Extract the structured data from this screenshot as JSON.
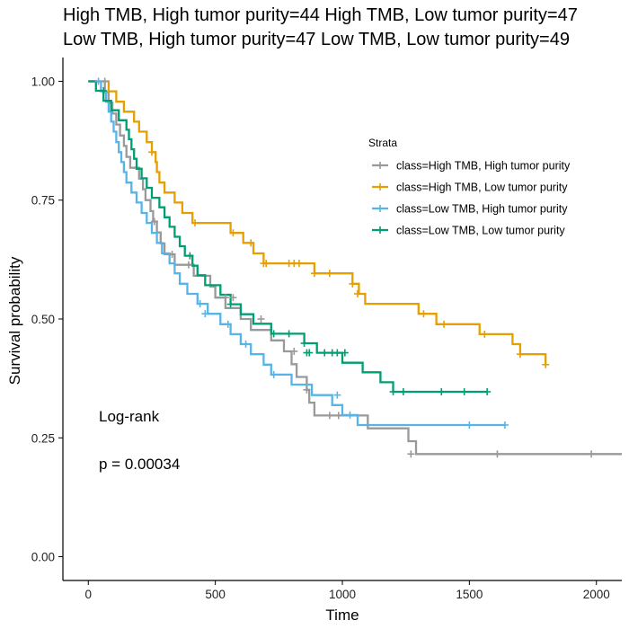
{
  "chart_data": {
    "type": "line",
    "title_lines": [
      "High TMB, High tumor purity=44 High TMB, Low tumor purity=47",
      "Low TMB, High tumor purity=47 Low TMB, Low tumor purity=49"
    ],
    "xlabel": "Time",
    "ylabel": "Survival probability",
    "xlim": [
      -100,
      2100
    ],
    "ylim": [
      -0.05,
      1.05
    ],
    "xticks": [
      0,
      500,
      1000,
      1500,
      2000
    ],
    "yticks": [
      0.0,
      0.25,
      0.5,
      0.75,
      1.0
    ],
    "ytick_labels": [
      "0.00",
      "0.25",
      "0.50",
      "0.75",
      "1.00"
    ],
    "grid": false,
    "legend": {
      "title": "Strata",
      "position": "top-right"
    },
    "annotations": [
      "Log-rank",
      "p = 0.00034"
    ],
    "series": [
      {
        "name": "class=High TMB, High tumor purity",
        "color": "#999999",
        "steps": [
          [
            0,
            1.0
          ],
          [
            65,
            0.977
          ],
          [
            80,
            0.955
          ],
          [
            95,
            0.932
          ],
          [
            110,
            0.909
          ],
          [
            125,
            0.886
          ],
          [
            140,
            0.864
          ],
          [
            150,
            0.841
          ],
          [
            165,
            0.818
          ],
          [
            200,
            0.795
          ],
          [
            215,
            0.773
          ],
          [
            225,
            0.75
          ],
          [
            245,
            0.727
          ],
          [
            255,
            0.705
          ],
          [
            270,
            0.682
          ],
          [
            285,
            0.659
          ],
          [
            300,
            0.636
          ],
          [
            340,
            0.614
          ],
          [
            415,
            0.591
          ],
          [
            480,
            0.568
          ],
          [
            500,
            0.545
          ],
          [
            540,
            0.523
          ],
          [
            600,
            0.5
          ],
          [
            640,
            0.477
          ],
          [
            720,
            0.455
          ],
          [
            770,
            0.432
          ],
          [
            800,
            0.405
          ],
          [
            820,
            0.378
          ],
          [
            860,
            0.351
          ],
          [
            870,
            0.324
          ],
          [
            890,
            0.297
          ],
          [
            1100,
            0.27
          ],
          [
            1260,
            0.243
          ],
          [
            1290,
            0.216
          ]
        ],
        "end": 2100,
        "censors": [
          [
            65,
            1.0
          ],
          [
            260,
            0.705
          ],
          [
            330,
            0.636
          ],
          [
            395,
            0.614
          ],
          [
            540,
            0.545
          ],
          [
            570,
            0.545
          ],
          [
            680,
            0.5
          ],
          [
            810,
            0.432
          ],
          [
            860,
            0.351
          ],
          [
            950,
            0.297
          ],
          [
            985,
            0.297
          ],
          [
            1270,
            0.216
          ],
          [
            1610,
            0.216
          ],
          [
            1980,
            0.216
          ]
        ]
      },
      {
        "name": "class=High TMB, Low tumor purity",
        "color": "#E69F00",
        "steps": [
          [
            0,
            1.0
          ],
          [
            80,
            0.979
          ],
          [
            110,
            0.957
          ],
          [
            140,
            0.936
          ],
          [
            180,
            0.915
          ],
          [
            200,
            0.894
          ],
          [
            230,
            0.872
          ],
          [
            250,
            0.851
          ],
          [
            265,
            0.83
          ],
          [
            270,
            0.809
          ],
          [
            280,
            0.787
          ],
          [
            300,
            0.766
          ],
          [
            340,
            0.745
          ],
          [
            370,
            0.723
          ],
          [
            410,
            0.702
          ],
          [
            560,
            0.681
          ],
          [
            610,
            0.66
          ],
          [
            650,
            0.638
          ],
          [
            690,
            0.617
          ],
          [
            890,
            0.596
          ],
          [
            1040,
            0.574
          ],
          [
            1065,
            0.553
          ],
          [
            1090,
            0.532
          ],
          [
            1300,
            0.511
          ],
          [
            1370,
            0.489
          ],
          [
            1540,
            0.468
          ],
          [
            1670,
            0.447
          ],
          [
            1700,
            0.426
          ],
          [
            1800,
            0.404
          ]
        ],
        "end": 1800,
        "censors": [
          [
            250,
            0.851
          ],
          [
            420,
            0.702
          ],
          [
            570,
            0.681
          ],
          [
            640,
            0.66
          ],
          [
            690,
            0.617
          ],
          [
            700,
            0.617
          ],
          [
            790,
            0.617
          ],
          [
            810,
            0.617
          ],
          [
            830,
            0.617
          ],
          [
            890,
            0.596
          ],
          [
            950,
            0.596
          ],
          [
            1040,
            0.574
          ],
          [
            1060,
            0.553
          ],
          [
            1320,
            0.511
          ],
          [
            1400,
            0.489
          ],
          [
            1560,
            0.468
          ],
          [
            1700,
            0.426
          ],
          [
            1800,
            0.404
          ]
        ]
      },
      {
        "name": "class=Low TMB, High tumor purity",
        "color": "#56B4E9",
        "steps": [
          [
            0,
            1.0
          ],
          [
            50,
            0.979
          ],
          [
            70,
            0.957
          ],
          [
            80,
            0.936
          ],
          [
            90,
            0.915
          ],
          [
            100,
            0.894
          ],
          [
            110,
            0.872
          ],
          [
            120,
            0.851
          ],
          [
            130,
            0.83
          ],
          [
            140,
            0.809
          ],
          [
            150,
            0.787
          ],
          [
            170,
            0.766
          ],
          [
            190,
            0.745
          ],
          [
            210,
            0.723
          ],
          [
            230,
            0.702
          ],
          [
            250,
            0.681
          ],
          [
            270,
            0.66
          ],
          [
            290,
            0.638
          ],
          [
            320,
            0.617
          ],
          [
            340,
            0.596
          ],
          [
            360,
            0.574
          ],
          [
            390,
            0.553
          ],
          [
            430,
            0.532
          ],
          [
            470,
            0.511
          ],
          [
            520,
            0.489
          ],
          [
            560,
            0.468
          ],
          [
            600,
            0.447
          ],
          [
            640,
            0.426
          ],
          [
            690,
            0.404
          ],
          [
            720,
            0.383
          ],
          [
            800,
            0.362
          ],
          [
            880,
            0.34
          ],
          [
            960,
            0.319
          ],
          [
            1000,
            0.298
          ],
          [
            1060,
            0.277
          ]
        ],
        "end": 1640,
        "censors": [
          [
            40,
            1.0
          ],
          [
            440,
            0.532
          ],
          [
            460,
            0.511
          ],
          [
            550,
            0.489
          ],
          [
            620,
            0.447
          ],
          [
            730,
            0.383
          ],
          [
            980,
            0.34
          ],
          [
            1030,
            0.298
          ],
          [
            1500,
            0.277
          ],
          [
            1640,
            0.277
          ]
        ]
      },
      {
        "name": "class=Low TMB, Low tumor purity",
        "color": "#009E73",
        "steps": [
          [
            0,
            1.0
          ],
          [
            30,
            0.98
          ],
          [
            60,
            0.959
          ],
          [
            90,
            0.939
          ],
          [
            120,
            0.918
          ],
          [
            150,
            0.898
          ],
          [
            160,
            0.878
          ],
          [
            170,
            0.857
          ],
          [
            180,
            0.837
          ],
          [
            190,
            0.816
          ],
          [
            210,
            0.796
          ],
          [
            230,
            0.776
          ],
          [
            250,
            0.755
          ],
          [
            280,
            0.735
          ],
          [
            300,
            0.714
          ],
          [
            320,
            0.694
          ],
          [
            340,
            0.673
          ],
          [
            360,
            0.653
          ],
          [
            380,
            0.633
          ],
          [
            410,
            0.612
          ],
          [
            430,
            0.592
          ],
          [
            460,
            0.571
          ],
          [
            520,
            0.551
          ],
          [
            560,
            0.531
          ],
          [
            600,
            0.51
          ],
          [
            650,
            0.49
          ],
          [
            720,
            0.469
          ],
          [
            850,
            0.449
          ],
          [
            900,
            0.429
          ],
          [
            1000,
            0.408
          ],
          [
            1080,
            0.388
          ],
          [
            1150,
            0.367
          ],
          [
            1200,
            0.347
          ]
        ],
        "end": 1570,
        "censors": [
          [
            60,
            0.98
          ],
          [
            400,
            0.633
          ],
          [
            560,
            0.531
          ],
          [
            730,
            0.469
          ],
          [
            790,
            0.469
          ],
          [
            850,
            0.449
          ],
          [
            860,
            0.429
          ],
          [
            870,
            0.429
          ],
          [
            930,
            0.429
          ],
          [
            960,
            0.429
          ],
          [
            980,
            0.429
          ],
          [
            1010,
            0.429
          ],
          [
            1200,
            0.347
          ],
          [
            1240,
            0.347
          ],
          [
            1390,
            0.347
          ],
          [
            1480,
            0.347
          ],
          [
            1570,
            0.347
          ]
        ]
      }
    ]
  }
}
